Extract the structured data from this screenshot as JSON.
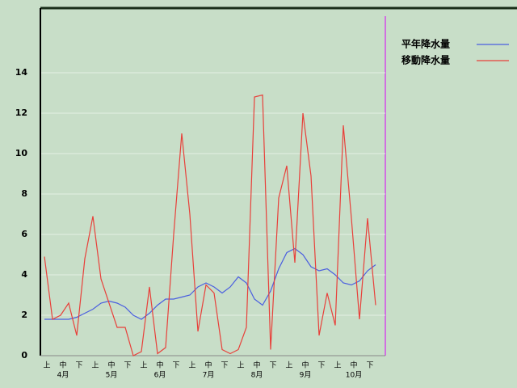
{
  "chart_data": {
    "type": "line",
    "categories": [
      "上",
      null,
      "中",
      null,
      "下",
      null,
      "上",
      null,
      "中",
      null,
      "下",
      null,
      "上",
      null,
      "中",
      null,
      "下",
      null,
      "上",
      null,
      "中",
      null,
      "下",
      null,
      "上",
      null,
      "中",
      null,
      "下",
      null,
      "上",
      null,
      "中",
      null,
      "下",
      null,
      "上",
      null,
      "中",
      null,
      "下",
      null
    ],
    "month_labels": [
      "4月",
      "5月",
      "6月",
      "7月",
      "8月",
      "9月",
      "10月"
    ],
    "series": [
      {
        "name": "平年降水量",
        "color": "#4a5ee0",
        "values": [
          1.8,
          1.8,
          1.8,
          1.8,
          1.9,
          2.1,
          2.3,
          2.6,
          2.7,
          2.6,
          2.4,
          2.0,
          1.8,
          2.1,
          2.5,
          2.8,
          2.8,
          2.9,
          3.0,
          3.4,
          3.6,
          3.4,
          3.1,
          3.4,
          3.9,
          3.6,
          2.8,
          2.5,
          3.2,
          4.3,
          5.1,
          5.3,
          5.0,
          4.4,
          4.2,
          4.3,
          4.0,
          3.6,
          3.5,
          3.7,
          4.2,
          4.5
        ]
      },
      {
        "name": "移動降水量",
        "color": "#e8403a",
        "values": [
          4.9,
          1.8,
          2.0,
          2.6,
          1.0,
          4.8,
          6.9,
          3.8,
          2.6,
          1.4,
          1.4,
          0,
          0.2,
          3.4,
          0.1,
          0.4,
          6.0,
          11.0,
          7.0,
          1.2,
          3.5,
          3.1,
          0.3,
          0.1,
          0.3,
          1.4,
          12.8,
          12.9,
          0.3,
          7.8,
          9.4,
          4.6,
          12.0,
          8.9,
          1.0,
          3.1,
          1.5,
          11.4,
          6.8,
          1.8,
          6.8,
          2.5
        ]
      }
    ],
    "ylim": [
      0,
      17.2
    ],
    "yticks": [
      0,
      2,
      4,
      6,
      8,
      10,
      12,
      14
    ],
    "grid": true
  }
}
